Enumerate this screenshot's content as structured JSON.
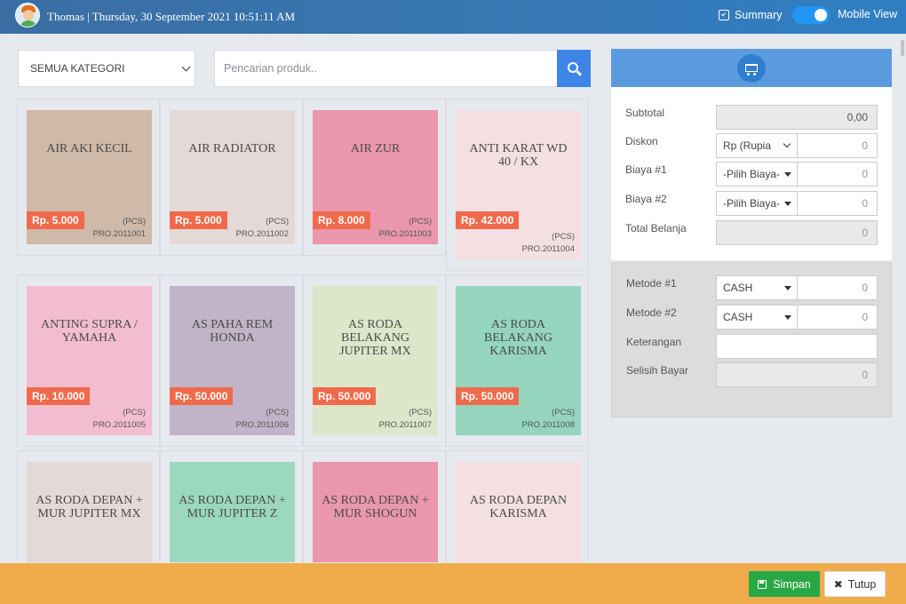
{
  "header": {
    "user_line": "Thomas | Thursday, 30 September 2021 10:51:11 AM",
    "summary_label": "Summary",
    "mobile_view_label": "Mobile View"
  },
  "filters": {
    "category_value": "SEMUA KATEGORI",
    "search_placeholder": "Pencarian produk.."
  },
  "products": [
    {
      "name": "AIR AKI KECIL",
      "price": "Rp. 5.000",
      "unit": "(PCS)",
      "code": "PRO.2011001",
      "color": "#cfb9a8"
    },
    {
      "name": "AIR RADIATOR",
      "price": "Rp. 5.000",
      "unit": "(PCS)",
      "code": "PRO.2011002",
      "color": "#e5d9d8"
    },
    {
      "name": "AIR ZUR",
      "price": "Rp. 8.000",
      "unit": "(PCS)",
      "code": "PRO.2011003",
      "color": "#ea97ae"
    },
    {
      "name": "ANTI KARAT WD 40 / KX",
      "price": "Rp. 42.000",
      "unit": "(PCS)",
      "code": "PRO.2011004",
      "color": "#f4e0e3"
    },
    {
      "name": "ANTING SUPRA / YAMAHA",
      "price": "Rp. 10.000",
      "unit": "(PCS)",
      "code": "PRO.2011005",
      "color": "#f3bdd0"
    },
    {
      "name": "AS PAHA REM HONDA",
      "price": "Rp. 50.000",
      "unit": "(PCS)",
      "code": "PRO.2011006",
      "color": "#c1b4c8"
    },
    {
      "name": "AS RODA BELAKANG JUPITER MX",
      "price": "Rp. 50.000",
      "unit": "(PCS)",
      "code": "PRO.2011007",
      "color": "#dde6c9"
    },
    {
      "name": "AS RODA BELAKANG KARISMA",
      "price": "Rp. 50.000",
      "unit": "(PCS)",
      "code": "PRO.2011008",
      "color": "#95d5bd"
    },
    {
      "name": "AS RODA DEPAN + MUR JUPITER MX",
      "price": "",
      "unit": "",
      "code": "",
      "color": "#e5d9d8"
    },
    {
      "name": "AS RODA DEPAN + MUR JUPITER Z",
      "price": "",
      "unit": "",
      "code": "",
      "color": "#9bd8be"
    },
    {
      "name": "AS RODA DEPAN + MUR SHOGUN",
      "price": "",
      "unit": "",
      "code": "",
      "color": "#ea97ae"
    },
    {
      "name": "AS RODA DEPAN KARISMA",
      "price": "",
      "unit": "",
      "code": "",
      "color": "#f4e0e3"
    }
  ],
  "cart": {
    "subtotal_label": "Subtotal",
    "subtotal_value": "0,00",
    "diskon_label": "Diskon",
    "diskon_type": "Rp (Rupia",
    "diskon_value": "0",
    "biaya1_label": "Biaya #1",
    "biaya1_select": "-Pilih Biaya-",
    "biaya1_value": "0",
    "biaya2_label": "Biaya #2",
    "biaya2_select": "-Pilih Biaya-",
    "biaya2_value": "0",
    "total_label": "Total Belanja",
    "total_value": "0"
  },
  "payment": {
    "metode1_label": "Metode #1",
    "metode1_select": "CASH",
    "metode1_value": "0",
    "metode2_label": "Metode #2",
    "metode2_select": "CASH",
    "metode2_value": "0",
    "keterangan_label": "Keterangan",
    "keterangan_value": "",
    "selisih_label": "Selisih Bayar",
    "selisih_value": "0"
  },
  "footer": {
    "save_label": "Simpan",
    "close_label": "Tutup"
  }
}
